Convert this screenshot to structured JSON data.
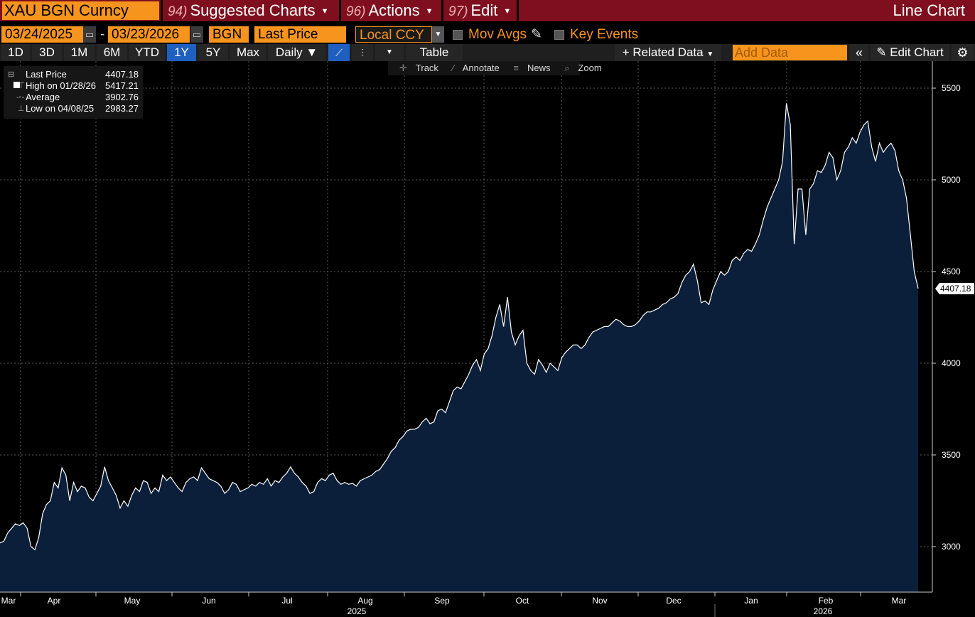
{
  "header": {
    "ticker": "XAU BGN Curncy",
    "menus": [
      {
        "num": "94)",
        "label": "Suggested Charts"
      },
      {
        "num": "96)",
        "label": "Actions"
      },
      {
        "num": "97)",
        "label": "Edit"
      }
    ],
    "title": "Line Chart"
  },
  "controls": {
    "start_date": "03/24/2025",
    "end_date": "03/23/2026",
    "dash": "-",
    "source": "BGN",
    "field": "Last Price",
    "currency": "Local CCY",
    "mov_avgs": "Mov Avgs",
    "key_events": "Key Events"
  },
  "toolbar": {
    "periods": [
      "1D",
      "3D",
      "1M",
      "6M",
      "YTD",
      "1Y",
      "5Y",
      "Max"
    ],
    "active_period": "1Y",
    "frequency": "Daily ▼",
    "table": "Table",
    "related_data": "+ Related Data",
    "add_data_placeholder": "Add Data",
    "edit_chart": "Edit Chart"
  },
  "tools": {
    "track": "Track",
    "annotate": "Annotate",
    "news": "News",
    "zoom": "Zoom"
  },
  "legend": [
    {
      "label": "Last Price",
      "value": "4407.18"
    },
    {
      "label": "High on 01/28/26",
      "value": "5417.21"
    },
    {
      "label": "Average",
      "value": "3902.76"
    },
    {
      "label": "Low on 04/08/25",
      "value": "2983.27"
    }
  ],
  "chart_data": {
    "type": "area",
    "series": [
      {
        "values": [
          3020,
          3030,
          3075,
          3100,
          3125,
          3115,
          3130,
          3100,
          3000,
          2983,
          3050,
          3180,
          3230,
          3250,
          3350,
          3320,
          3430,
          3390,
          3250,
          3350,
          3300,
          3330,
          3320,
          3270,
          3250,
          3290,
          3330,
          3435,
          3360,
          3320,
          3280,
          3210,
          3250,
          3220,
          3280,
          3320,
          3300,
          3360,
          3350,
          3290,
          3320,
          3300,
          3390,
          3360,
          3380,
          3350,
          3320,
          3300,
          3350,
          3370,
          3380,
          3360,
          3430,
          3400,
          3370,
          3360,
          3350,
          3330,
          3290,
          3310,
          3350,
          3340,
          3300,
          3310,
          3320,
          3340,
          3330,
          3350,
          3340,
          3370,
          3330,
          3360,
          3350,
          3380,
          3400,
          3435,
          3400,
          3380,
          3350,
          3330,
          3290,
          3300,
          3350,
          3370,
          3360,
          3390,
          3400,
          3360,
          3340,
          3350,
          3340,
          3345,
          3330,
          3360,
          3370,
          3380,
          3390,
          3410,
          3420,
          3450,
          3480,
          3520,
          3540,
          3580,
          3600,
          3630,
          3640,
          3640,
          3650,
          3680,
          3700,
          3670,
          3680,
          3740,
          3750,
          3730,
          3790,
          3850,
          3870,
          3860,
          3900,
          3940,
          3990,
          4020,
          3960,
          4050,
          4080,
          4150,
          4250,
          4320,
          4200,
          4360,
          4170,
          4100,
          4150,
          4180,
          4000,
          3960,
          3940,
          4020,
          3990,
          3950,
          4000,
          3980,
          3960,
          4030,
          4060,
          4080,
          4100,
          4100,
          4080,
          4100,
          4140,
          4170,
          4180,
          4190,
          4200,
          4200,
          4220,
          4240,
          4230,
          4210,
          4200,
          4200,
          4210,
          4230,
          4260,
          4280,
          4280,
          4290,
          4300,
          4320,
          4330,
          4350,
          4360,
          4380,
          4440,
          4480,
          4500,
          4540,
          4450,
          4330,
          4340,
          4320,
          4400,
          4450,
          4500,
          4480,
          4500,
          4560,
          4580,
          4560,
          4600,
          4620,
          4610,
          4650,
          4700,
          4780,
          4850,
          4900,
          4950,
          5000,
          5100,
          5417,
          5300,
          4650,
          4950,
          4950,
          4700,
          4950,
          4980,
          5050,
          5040,
          5080,
          5150,
          5120,
          5000,
          5050,
          5150,
          5180,
          5230,
          5200,
          5260,
          5300,
          5320,
          5180,
          5100,
          5200,
          5150,
          5180,
          5200,
          5160,
          5050,
          5000,
          4900,
          4700,
          4500,
          4407.18
        ]
      }
    ],
    "x_start": "03/24/2025",
    "x_end": "03/23/2026",
    "x_month_labels": [
      "Mar",
      "Apr",
      "May",
      "Jun",
      "Jul",
      "Aug",
      "Sep",
      "Oct",
      "Nov",
      "Dec",
      "Jan",
      "Feb",
      "Mar"
    ],
    "year_labels": [
      "2025",
      "2026"
    ],
    "ylim": [
      2750,
      5600
    ],
    "yticks": [
      3000,
      3500,
      4000,
      4500,
      5000,
      5500
    ],
    "ytick_labels": [
      "3000",
      "3500",
      "4000",
      "4500",
      "5000",
      "5500"
    ],
    "last_value_label": "4407.18",
    "grid": true,
    "line_color": "#ffffff",
    "fill_color": "#0b1f3a",
    "background": "#000000"
  }
}
